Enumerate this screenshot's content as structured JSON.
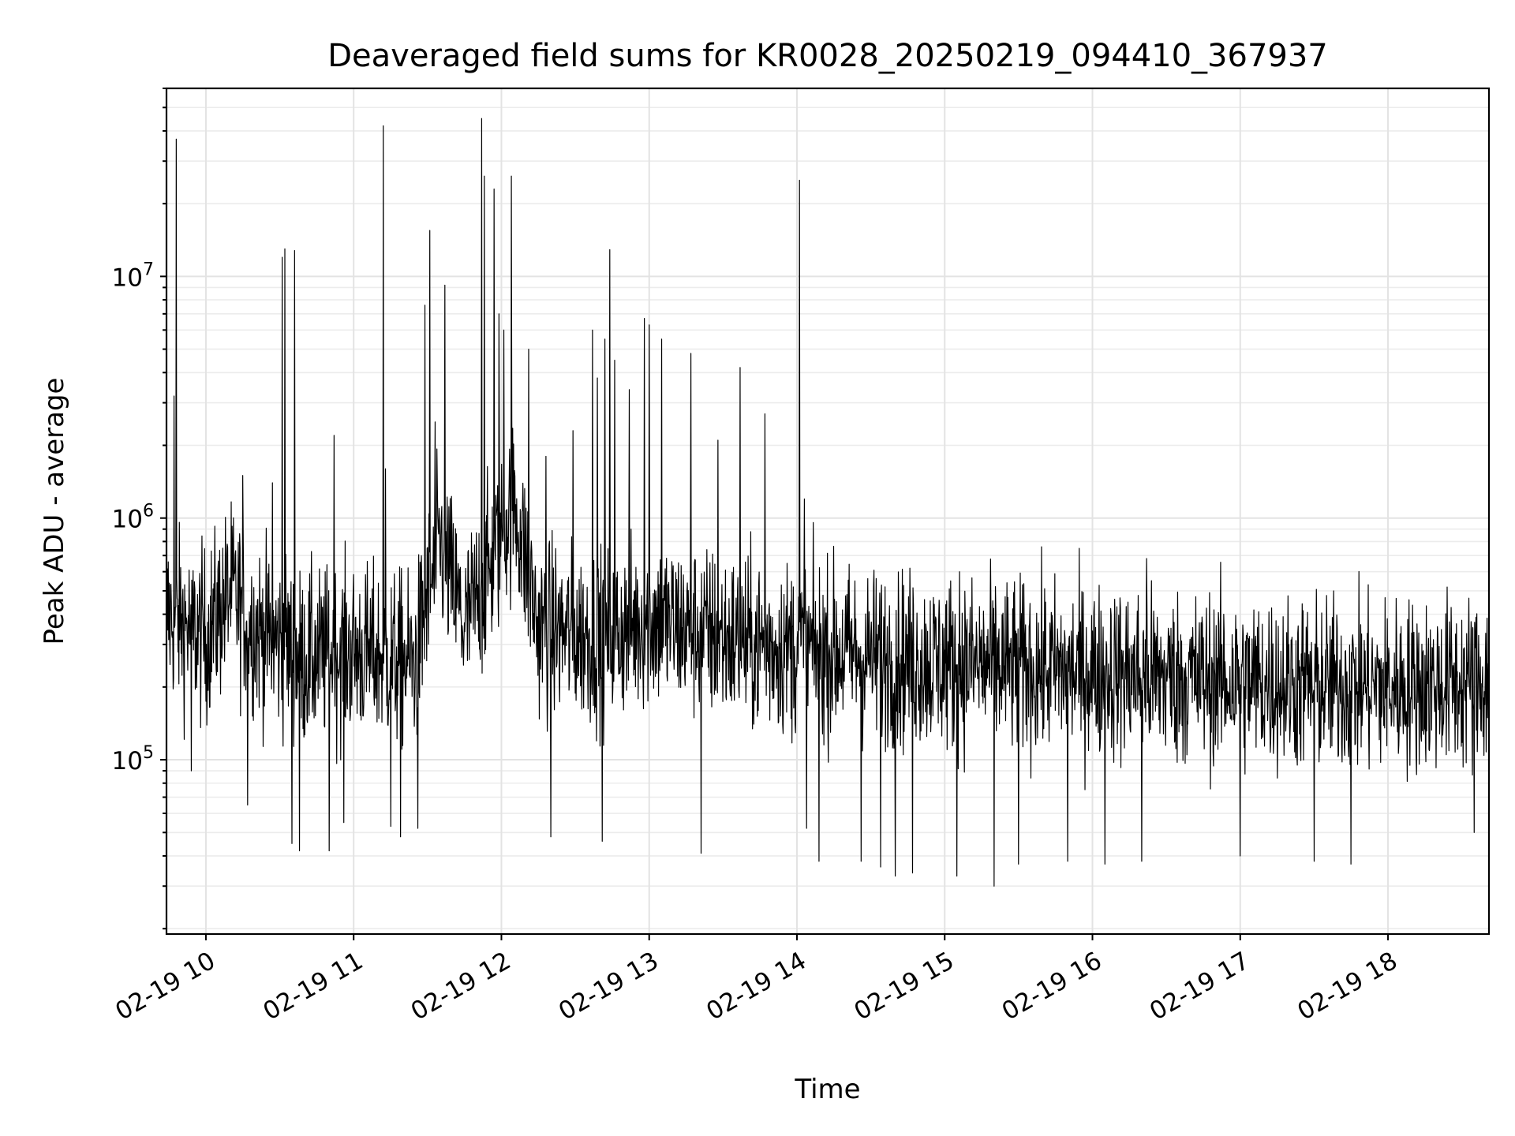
{
  "chart_data": {
    "type": "line",
    "title": "Deaveraged field sums for KR0028_20250219_094410_367937",
    "xlabel": "Time",
    "ylabel": "Peak ADU - average",
    "yscale": "log",
    "grid": true,
    "x_ticks": [
      "02-19 10",
      "02-19 11",
      "02-19 12",
      "02-19 13",
      "02-19 14",
      "02-19 15",
      "02-19 16",
      "02-19 17",
      "02-19 18"
    ],
    "y_ticks": [
      {
        "base": "10",
        "exp": "5",
        "value": 100000
      },
      {
        "base": "10",
        "exp": "6",
        "value": 1000000
      },
      {
        "base": "10",
        "exp": "7",
        "value": 10000000
      }
    ],
    "xlim": [
      "2025-02-19 09:44",
      "2025-02-19 18:41"
    ],
    "ylim": [
      19000,
      60000000
    ],
    "line_color": "#000000",
    "series": [
      {
        "x_start": "2025-02-19 09:44",
        "x_end": "2025-02-19 18:41",
        "baseline": [
          {
            "t": "09:44",
            "v": 400000
          },
          {
            "t": "10:00",
            "v": 320000
          },
          {
            "t": "10:10",
            "v": 500000
          },
          {
            "t": "10:20",
            "v": 350000
          },
          {
            "t": "10:40",
            "v": 260000
          },
          {
            "t": "11:00",
            "v": 280000
          },
          {
            "t": "11:25",
            "v": 250000
          },
          {
            "t": "11:35",
            "v": 800000
          },
          {
            "t": "11:45",
            "v": 350000
          },
          {
            "t": "11:55",
            "v": 600000
          },
          {
            "t": "12:05",
            "v": 1200000
          },
          {
            "t": "12:15",
            "v": 350000
          },
          {
            "t": "12:40",
            "v": 320000
          },
          {
            "t": "13:00",
            "v": 380000
          },
          {
            "t": "13:40",
            "v": 300000
          },
          {
            "t": "14:00",
            "v": 290000
          },
          {
            "t": "15:00",
            "v": 250000
          },
          {
            "t": "16:00",
            "v": 230000
          },
          {
            "t": "17:00",
            "v": 210000
          },
          {
            "t": "18:00",
            "v": 200000
          },
          {
            "t": "18:41",
            "v": 210000
          }
        ],
        "spikes": [
          {
            "t": "09:48",
            "v": 37000000
          },
          {
            "t": "09:47",
            "v": 3200000
          },
          {
            "t": "10:15",
            "v": 1500000
          },
          {
            "t": "10:27",
            "v": 1400000
          },
          {
            "t": "10:31",
            "v": 12000000
          },
          {
            "t": "10:32",
            "v": 13000000
          },
          {
            "t": "10:36",
            "v": 12800000
          },
          {
            "t": "10:52",
            "v": 2200000
          },
          {
            "t": "11:12",
            "v": 42000000
          },
          {
            "t": "11:13",
            "v": 1600000
          },
          {
            "t": "11:29",
            "v": 7600000
          },
          {
            "t": "11:31",
            "v": 15500000
          },
          {
            "t": "11:33",
            "v": 2500000
          },
          {
            "t": "11:37",
            "v": 9200000
          },
          {
            "t": "11:52",
            "v": 45000000
          },
          {
            "t": "11:53",
            "v": 26000000
          },
          {
            "t": "11:57",
            "v": 23000000
          },
          {
            "t": "11:59",
            "v": 7000000
          },
          {
            "t": "12:01",
            "v": 6000000
          },
          {
            "t": "12:04",
            "v": 26000000
          },
          {
            "t": "12:11",
            "v": 5000000
          },
          {
            "t": "12:18",
            "v": 1800000
          },
          {
            "t": "12:29",
            "v": 2300000
          },
          {
            "t": "12:37",
            "v": 6000000
          },
          {
            "t": "12:39",
            "v": 3800000
          },
          {
            "t": "12:42",
            "v": 5500000
          },
          {
            "t": "12:44",
            "v": 12900000
          },
          {
            "t": "12:46",
            "v": 4500000
          },
          {
            "t": "12:52",
            "v": 3400000
          },
          {
            "t": "12:58",
            "v": 6700000
          },
          {
            "t": "13:00",
            "v": 6300000
          },
          {
            "t": "13:05",
            "v": 5500000
          },
          {
            "t": "13:17",
            "v": 4800000
          },
          {
            "t": "13:28",
            "v": 2100000
          },
          {
            "t": "13:37",
            "v": 4200000
          },
          {
            "t": "13:47",
            "v": 2700000
          },
          {
            "t": "14:01",
            "v": 25000000
          },
          {
            "t": "14:03",
            "v": 1200000
          },
          {
            "t": "16:22",
            "v": 680000
          },
          {
            "t": "15:06",
            "v": 600000
          }
        ],
        "dips": [
          {
            "t": "09:54",
            "v": 90000
          },
          {
            "t": "10:17",
            "v": 65000
          },
          {
            "t": "10:35",
            "v": 45000
          },
          {
            "t": "10:38",
            "v": 42000
          },
          {
            "t": "10:50",
            "v": 42000
          },
          {
            "t": "10:56",
            "v": 55000
          },
          {
            "t": "11:15",
            "v": 53000
          },
          {
            "t": "11:19",
            "v": 48000
          },
          {
            "t": "11:26",
            "v": 52000
          },
          {
            "t": "12:20",
            "v": 48000
          },
          {
            "t": "12:41",
            "v": 46000
          },
          {
            "t": "13:21",
            "v": 41000
          },
          {
            "t": "14:04",
            "v": 52000
          },
          {
            "t": "14:09",
            "v": 38000
          },
          {
            "t": "14:26",
            "v": 38000
          },
          {
            "t": "14:34",
            "v": 36000
          },
          {
            "t": "14:40",
            "v": 33000
          },
          {
            "t": "14:47",
            "v": 34000
          },
          {
            "t": "15:05",
            "v": 33000
          },
          {
            "t": "15:20",
            "v": 30000
          },
          {
            "t": "15:30",
            "v": 37000
          },
          {
            "t": "15:50",
            "v": 38000
          },
          {
            "t": "16:05",
            "v": 37000
          },
          {
            "t": "16:20",
            "v": 38000
          },
          {
            "t": "17:00",
            "v": 40000
          },
          {
            "t": "17:30",
            "v": 38000
          },
          {
            "t": "17:45",
            "v": 37000
          },
          {
            "t": "18:35",
            "v": 50000
          }
        ]
      }
    ]
  }
}
